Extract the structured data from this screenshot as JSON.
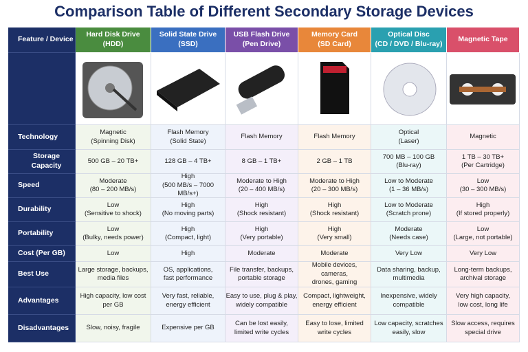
{
  "header": {
    "title": "Comparison Table of Different Secondary Storage Devices"
  },
  "table": {
    "corner": "Feature / Device",
    "columns": [
      [
        "Hard Disk Drive",
        "(HDD)"
      ],
      [
        "Solid State Drive",
        "(SSD)"
      ],
      [
        "USB Flash Drive",
        "(Pen Drive)"
      ],
      [
        "Memory Card",
        "(SD Card)"
      ],
      [
        "Optical Disc",
        "(CD / DVD / Blu-ray)"
      ],
      [
        "Magnetic Tape"
      ]
    ],
    "rows": [
      {
        "label": "Technology",
        "cells": [
          [
            "Magnetic",
            "(Spinning Disk)"
          ],
          [
            "Flash Memory",
            "(Solid State)"
          ],
          [
            "Flash Memory"
          ],
          [
            "Flash Memory"
          ],
          [
            "Optical",
            "(Laser)"
          ],
          [
            "Magnetic"
          ]
        ]
      },
      {
        "label": "Storage Capacity",
        "cells": [
          [
            "500 GB – 20 TB+"
          ],
          [
            "128 GB – 4 TB+"
          ],
          [
            "8 GB – 1 TB+"
          ],
          [
            "2 GB – 1 TB"
          ],
          [
            "700 MB – 100 GB",
            "(Blu-ray)"
          ],
          [
            "1 TB – 30 TB+",
            "(Per Cartridge)"
          ]
        ]
      },
      {
        "label": "Speed",
        "cells": [
          [
            "Moderate",
            "(80 – 200 MB/s)"
          ],
          [
            "High",
            "(500 MB/s – 7000 MB/s+)"
          ],
          [
            "Moderate to High",
            "(20 – 400 MB/s)"
          ],
          [
            "Moderate to High",
            "(20 – 300 MB/s)"
          ],
          [
            "Low to Moderate",
            "(1 – 36 MB/s)"
          ],
          [
            "Low",
            "(30 – 300 MB/s)"
          ]
        ]
      },
      {
        "label": "Durability",
        "cells": [
          [
            "Low",
            "(Sensitive to shock)"
          ],
          [
            "High",
            "(No moving parts)"
          ],
          [
            "High",
            "(Shock resistant)"
          ],
          [
            "High",
            "(Shock resistant)"
          ],
          [
            "Low to Moderate",
            "(Scratch prone)"
          ],
          [
            "High",
            "(If stored properly)"
          ]
        ]
      },
      {
        "label": "Portability",
        "cells": [
          [
            "Low",
            "(Bulky, needs power)"
          ],
          [
            "High",
            "(Compact, light)"
          ],
          [
            "High",
            "(Very portable)"
          ],
          [
            "High",
            "(Very small)"
          ],
          [
            "Moderate",
            "(Needs case)"
          ],
          [
            "Low",
            "(Large, not portable)"
          ]
        ]
      },
      {
        "label": "Cost (Per GB)",
        "cells": [
          [
            "Low"
          ],
          [
            "High"
          ],
          [
            "Moderate"
          ],
          [
            "Moderate"
          ],
          [
            "Very Low"
          ],
          [
            "Very Low"
          ]
        ]
      },
      {
        "label": "Best Use",
        "cells": [
          [
            "Large storage, backups,",
            "media files"
          ],
          [
            "OS, applications,",
            "fast performance"
          ],
          [
            "File transfer, backups,",
            "portable storage"
          ],
          [
            "Mobile devices, cameras,",
            "drones, gaming"
          ],
          [
            "Data sharing, backup,",
            "multimedia"
          ],
          [
            "Long-term backups,",
            "archival storage"
          ]
        ]
      },
      {
        "label": "Advantages",
        "cells": [
          [
            "High capacity, low cost",
            "per GB"
          ],
          [
            "Very fast, reliable,",
            "energy efficient"
          ],
          [
            "Easy to use, plug & play,",
            "widely compatible"
          ],
          [
            "Compact, lightweight,",
            "energy efficient"
          ],
          [
            "Inexpensive, widely",
            "compatible"
          ],
          [
            "Very high capacity,",
            "low cost, long life"
          ]
        ]
      },
      {
        "label": "Disadvantages",
        "cells": [
          [
            "Slow, noisy, fragile"
          ],
          [
            "Expensive per GB"
          ],
          [
            "Can be lost easily,",
            "limited write cycles"
          ],
          [
            "Easy to lose, limited",
            "write cycles"
          ],
          [
            "Low capacity, scratches",
            "easily, slow"
          ],
          [
            "Slow access, requires",
            "special drive"
          ]
        ]
      }
    ]
  }
}
